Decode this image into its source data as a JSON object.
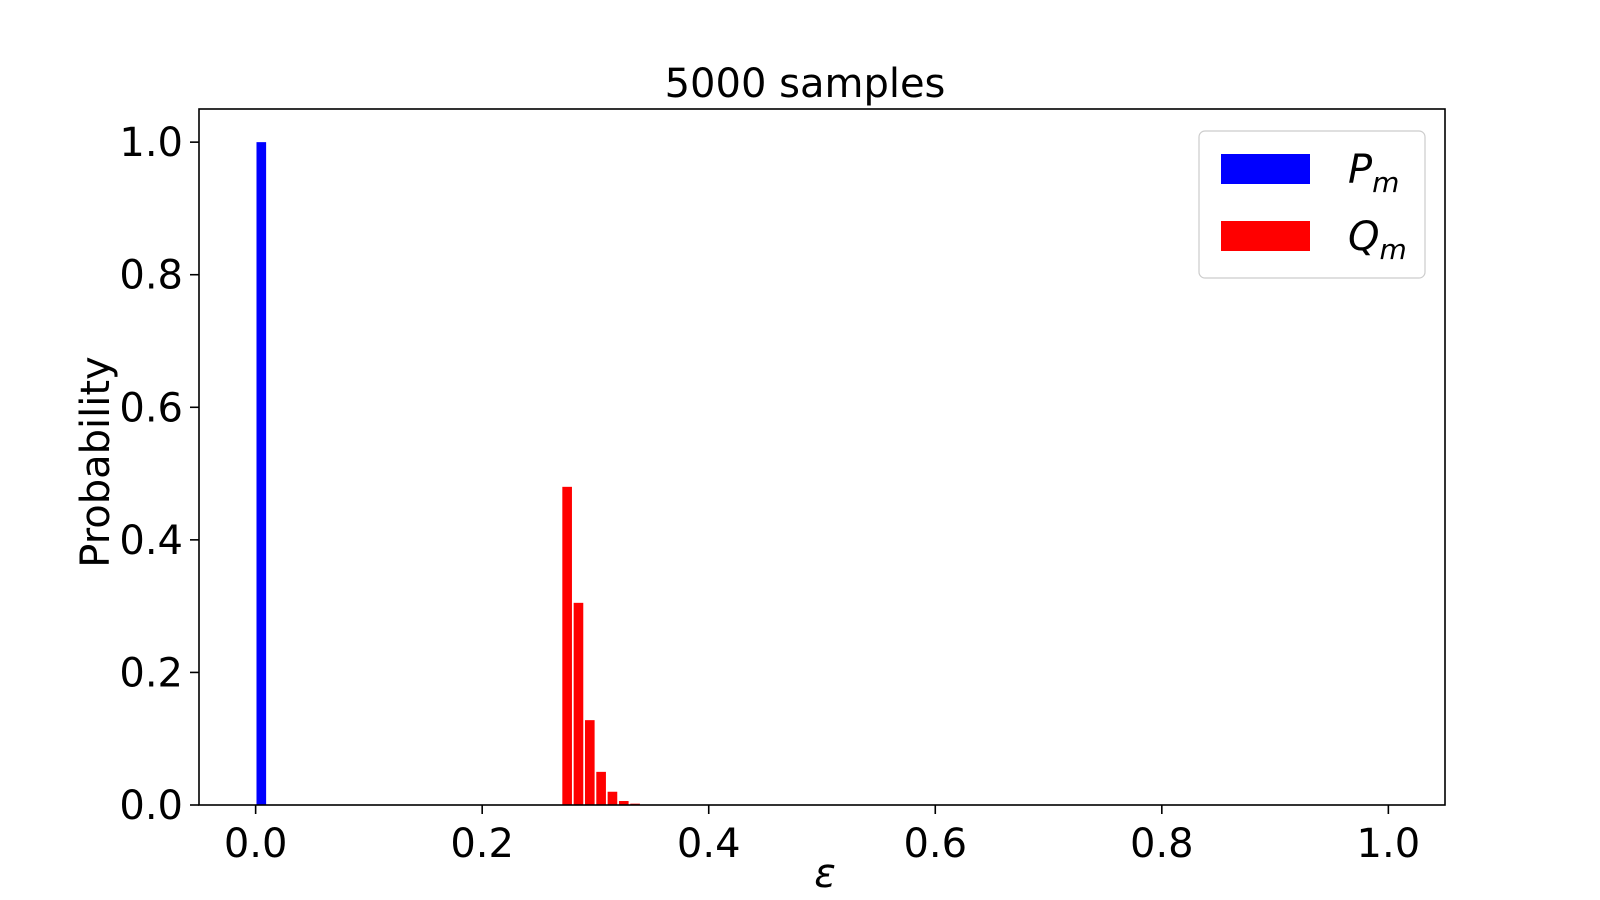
{
  "chart_data": {
    "type": "bar",
    "title": "5000 samples",
    "xlabel": "ε",
    "ylabel": "Probability",
    "xlim": [
      -0.05,
      1.05
    ],
    "ylim": [
      0.0,
      1.05
    ],
    "xticks": [
      "0.0",
      "0.2",
      "0.4",
      "0.6",
      "0.8",
      "1.0"
    ],
    "yticks": [
      "0.0",
      "0.2",
      "0.4",
      "0.6",
      "0.8",
      "1.0"
    ],
    "bar_width": 0.0085,
    "grid": false,
    "legend_position": "top-right",
    "series": [
      {
        "name": "P",
        "subscript": "m",
        "color": "#0000ff",
        "x": [
          0.005
        ],
        "values": [
          1.0
        ]
      },
      {
        "name": "Q",
        "subscript": "m",
        "color": "#ff0000",
        "x": [
          0.275,
          0.285,
          0.295,
          0.305,
          0.315,
          0.325,
          0.335
        ],
        "values": [
          0.48,
          0.305,
          0.128,
          0.05,
          0.02,
          0.006,
          0.002
        ]
      }
    ]
  }
}
